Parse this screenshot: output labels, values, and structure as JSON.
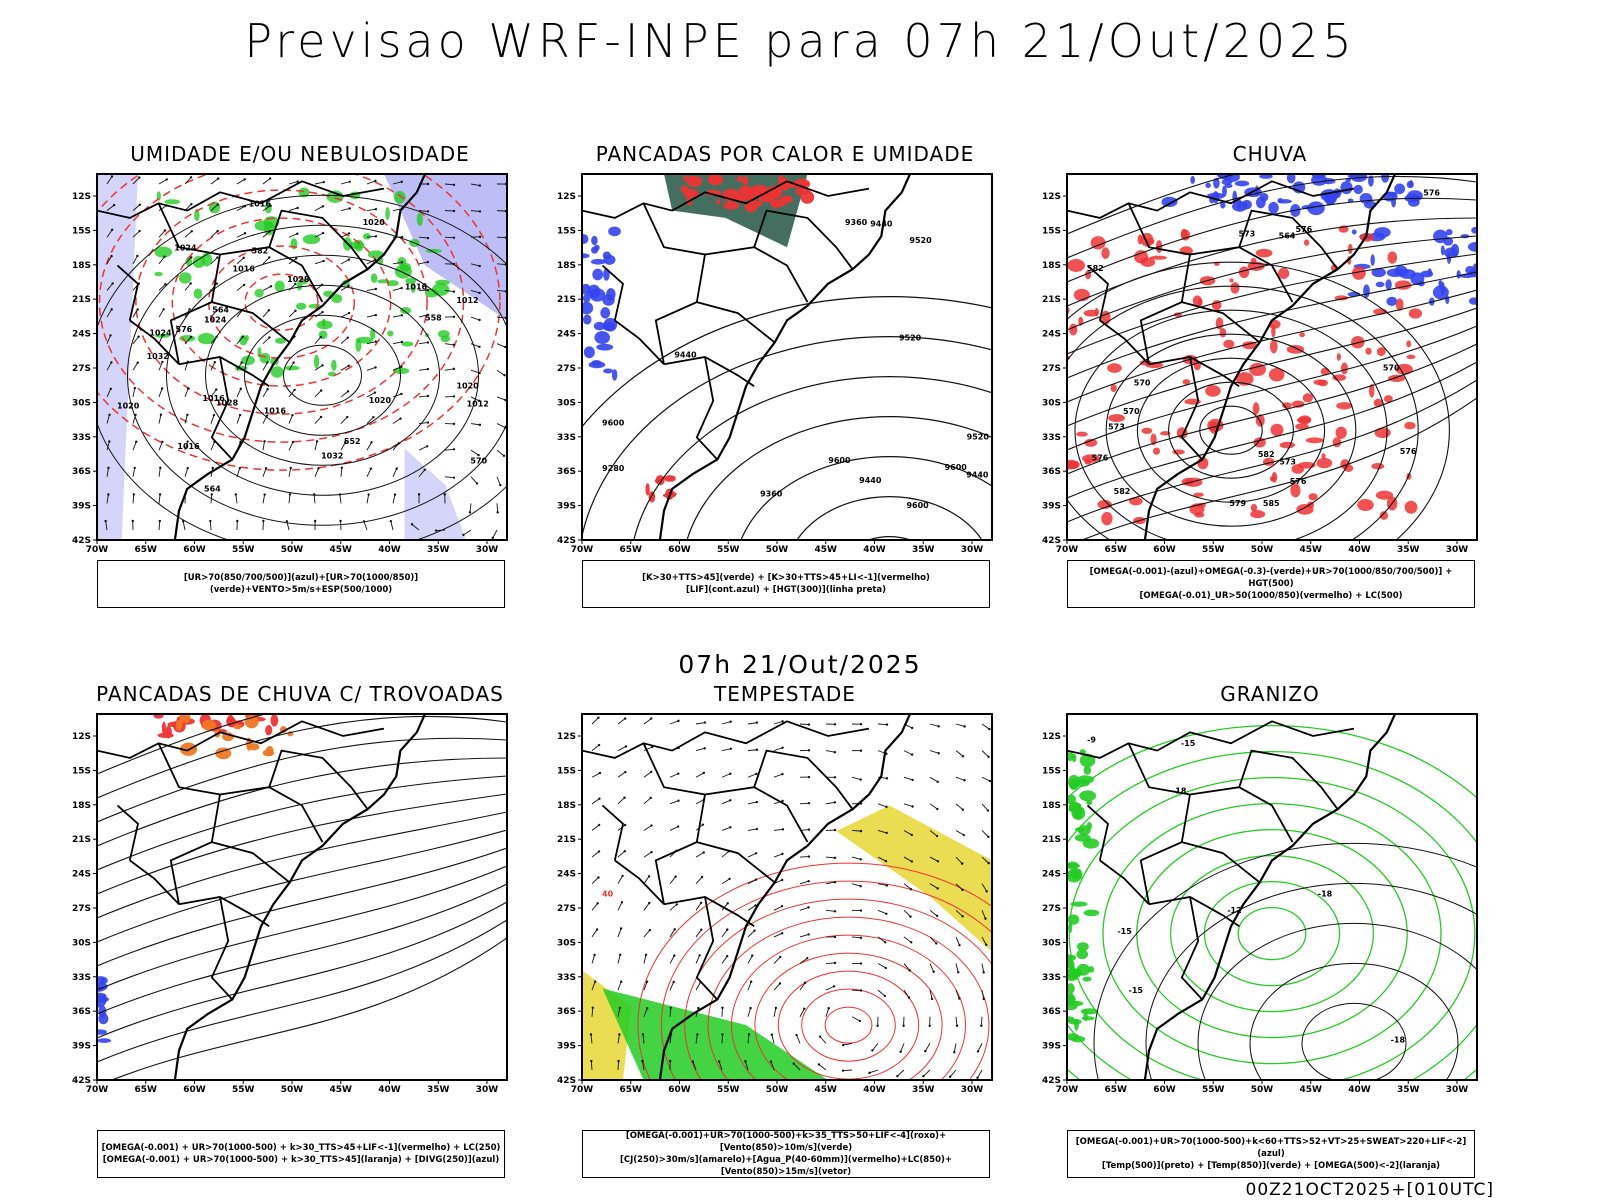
{
  "title": "Previsao WRF-INPE  para 07h 21/Out/2025",
  "middle_title": "07h 21/Out/2025",
  "footer": "00Z21OCT2025+[010UTC]",
  "axes": {
    "lat_labels": [
      "12S",
      "15S",
      "18S",
      "21S",
      "24S",
      "27S",
      "30S",
      "33S",
      "36S",
      "39S",
      "42S"
    ],
    "lon_labels": [
      "70W",
      "65W",
      "60W",
      "55W",
      "50W",
      "45W",
      "40W",
      "35W",
      "30W"
    ]
  },
  "colors": {
    "blue": "#3344ee",
    "green": "#22cc22",
    "red": "#ee3333",
    "orange": "#ee7722",
    "yellow": "#e6d733",
    "teal": "#225544",
    "purple": "#8888ee"
  },
  "panels": [
    {
      "title": "UMIDADE E/OU NEBULOSIDADE",
      "legend": [
        "[UR>70(850/700/500)](azul)+[UR>70(1000/850)](verde)+VENTO>5m/s+ESP(500/1000)"
      ],
      "contour_labels": [
        "1020",
        "1016",
        "1020",
        "1024",
        "1016",
        "1020",
        "1024",
        "1028",
        "1016",
        "1012",
        "1024",
        "1012",
        "1016",
        "1028",
        "1032",
        "1032",
        "1016",
        "1020",
        "1016",
        "570",
        "564",
        "552",
        "564",
        "576",
        "582",
        "558"
      ]
    },
    {
      "title": "PANCADAS POR CALOR E UMIDADE",
      "legend": [
        "[K>30+TTS>45](verde) + [K>30+TTS>45+LI<-1](vermelho)",
        "[LIF](cont.azul) + [HGT(300)](linha preta)"
      ],
      "contour_labels": [
        "9600",
        "9600",
        "9600",
        "9600",
        "9520",
        "9520",
        "9520",
        "9440",
        "9440",
        "9440",
        "9360",
        "9360",
        "9280",
        "9440"
      ]
    },
    {
      "title": "CHUVA",
      "legend": [
        "[OMEGA(-0.001)-(azul)+OMEGA(-0.3)-(verde)+UR>70(1000/850/700/500)] + HGT(500)",
        "[OMEGA(-0.01)_UR>50(1000/850)(vermelho) + LC(500)"
      ],
      "contour_labels": [
        "582",
        "576",
        "573",
        "570",
        "576",
        "573",
        "570",
        "576",
        "573",
        "564",
        "570",
        "576",
        "579",
        "576",
        "582",
        "585",
        "582"
      ]
    },
    {
      "title": "PANCADAS DE CHUVA C/ TROVOADAS",
      "legend": [
        "[OMEGA(-0.001) + UR>70(1000-500) + k>30_TTS>45+LIF<-1](vermelho) + LC(250)",
        "[OMEGA(-0.001) + UR>70(1000-500) + k>30_TTS>45](laranja) + [DIVG(250)](azul)"
      ],
      "contour_labels": []
    },
    {
      "title": "TEMPESTADE",
      "legend": [
        "[OMEGA(-0.001)+UR>70(1000-500)+k>35_TTS>50+LIF<-4](roxo)+[Vento(850)>10m/s](verde)",
        "[CJ(250)>30m/s](amarelo)+[Agua_P(40-60mm)](vermelho)+LC(850)+[Vento(850)>15m/s](vetor)"
      ],
      "contour_labels": [
        "40"
      ]
    },
    {
      "title": "GRANIZO",
      "legend": [
        "[OMEGA(-0.001)+UR>70(1000-500)+k<60+TTS>52+VT>25+SWEAT>220+LIF<-2](azul)",
        "[Temp(500)](preto) + [Temp(850)](verde) + [OMEGA(500)<-2](laranja)"
      ],
      "contour_labels": [
        "-9",
        "-12",
        "-15",
        "-15",
        "-18",
        "-18",
        "-15",
        "-18"
      ]
    }
  ]
}
